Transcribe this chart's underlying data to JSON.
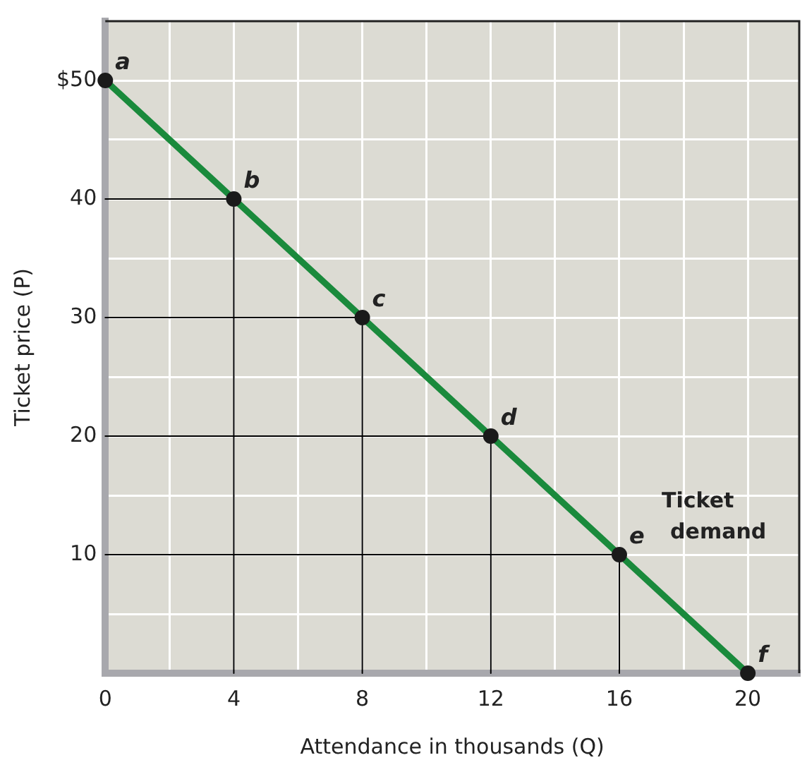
{
  "chart_data": {
    "type": "line",
    "xlabel": "Attendance in thousands (Q)",
    "ylabel": "Ticket price (P)",
    "xlim": [
      0,
      21.6
    ],
    "ylim": [
      0,
      55
    ],
    "xticks": [
      0,
      {
        "value": 2,
        "label": null
      },
      4,
      {
        "value": 6,
        "label": null
      },
      8,
      {
        "value": 10,
        "label": null
      },
      12,
      {
        "value": 14,
        "label": null
      },
      16,
      {
        "value": 18,
        "label": null
      },
      20
    ],
    "yticks": [
      {
        "value": 0,
        "label": null
      },
      {
        "value": 5,
        "label": null
      },
      10,
      {
        "value": 15,
        "label": null
      },
      20,
      {
        "value": 25,
        "label": null
      },
      30,
      {
        "value": 35,
        "label": null
      },
      40,
      {
        "value": 45,
        "label": null
      },
      {
        "value": 50,
        "label": "$50"
      }
    ],
    "grid": true,
    "legend": false,
    "series": [
      {
        "color": "#000000",
        "marker": "none",
        "x": [
          0,
          4,
          4
        ],
        "values": [
          40,
          40,
          0
        ]
      },
      {
        "color": "#000000",
        "marker": "none",
        "x": [
          0,
          8,
          8
        ],
        "values": [
          30,
          30,
          0
        ]
      },
      {
        "color": "#000000",
        "marker": "none",
        "x": [
          0,
          12,
          12
        ],
        "values": [
          20,
          20,
          0
        ]
      },
      {
        "color": "#000000",
        "marker": "none",
        "x": [
          0,
          16,
          16
        ],
        "values": [
          10,
          10,
          0
        ]
      },
      {
        "color": "#1a8a3c",
        "marker": "none",
        "x": [
          0,
          4,
          8,
          12,
          16,
          20
        ],
        "values": [
          50,
          40,
          30,
          20,
          10,
          0
        ]
      },
      {
        "type": "scatter",
        "color": "#1a1a1a",
        "marker": "circle",
        "x": [
          0,
          4,
          8,
          12,
          16,
          20
        ],
        "values": [
          50,
          40,
          30,
          20,
          10,
          0
        ]
      }
    ],
    "annotations": [
      {
        "text": "a",
        "x": 0,
        "y": 50
      },
      {
        "text": "b",
        "x": 4,
        "y": 40
      },
      {
        "text": "c",
        "x": 8,
        "y": 30
      },
      {
        "text": "d",
        "x": 12,
        "y": 20
      },
      {
        "text": "e",
        "x": 16,
        "y": 10
      },
      {
        "text": "f",
        "x": 20,
        "y": 0
      },
      "Ticket demand"
    ]
  }
}
